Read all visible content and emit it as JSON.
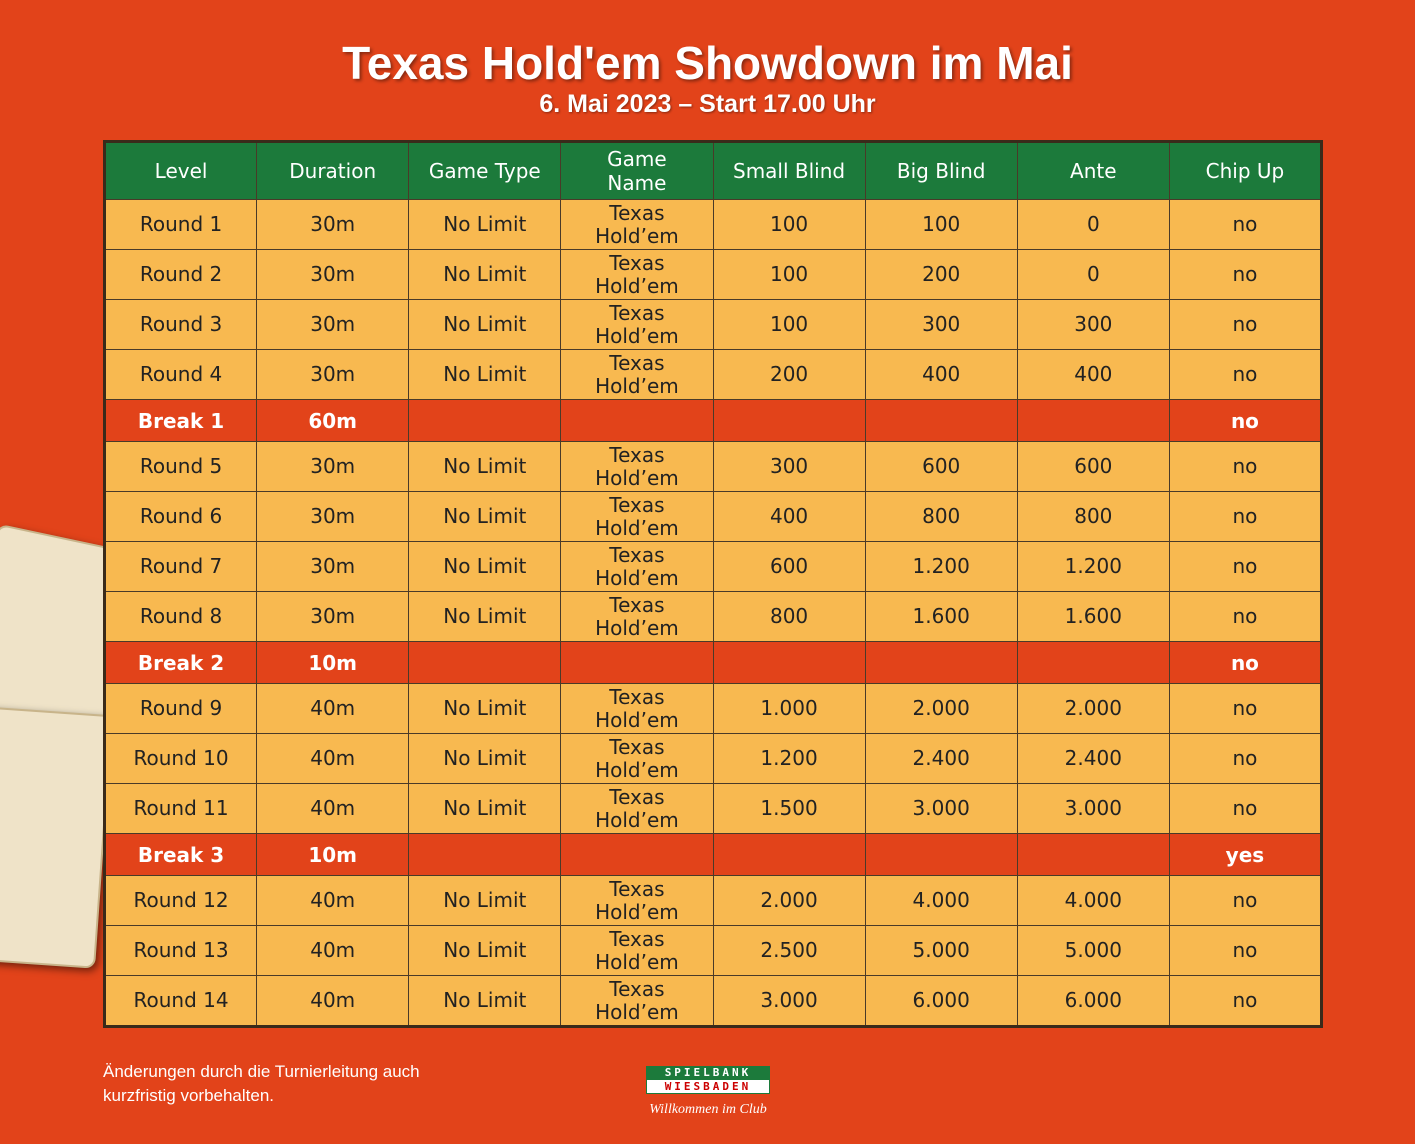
{
  "header": {
    "title": "Texas Hold'em Showdown im Mai",
    "subtitle": "6. Mai 2023 – Start 17.00 Uhr"
  },
  "table": {
    "columns": [
      "Level",
      "Duration",
      "Game Type",
      "Game Name",
      "Small Blind",
      "Big Blind",
      "Ante",
      "Chip Up"
    ],
    "rows": [
      [
        "Round 1",
        "30m",
        "No Limit",
        "Texas Hold’em",
        "100",
        "100",
        "0",
        "no"
      ],
      [
        "Round 2",
        "30m",
        "No Limit",
        "Texas Hold’em",
        "100",
        "200",
        "0",
        "no"
      ],
      [
        "Round 3",
        "30m",
        "No Limit",
        "Texas Hold’em",
        "100",
        "300",
        "300",
        "no"
      ],
      [
        "Round 4",
        "30m",
        "No Limit",
        "Texas Hold’em",
        "200",
        "400",
        "400",
        "no"
      ],
      {
        "level": "Break 1",
        "duration": "60m",
        "chip_up": "no"
      },
      [
        "Round 5",
        "30m",
        "No Limit",
        "Texas Hold’em",
        "300",
        "600",
        "600",
        "no"
      ],
      [
        "Round 6",
        "30m",
        "No Limit",
        "Texas Hold’em",
        "400",
        "800",
        "800",
        "no"
      ],
      [
        "Round 7",
        "30m",
        "No Limit",
        "Texas Hold’em",
        "600",
        "1.200",
        "1.200",
        "no"
      ],
      [
        "Round 8",
        "30m",
        "No Limit",
        "Texas Hold’em",
        "800",
        "1.600",
        "1.600",
        "no"
      ],
      {
        "level": "Break 2",
        "duration": "10m",
        "chip_up": "no"
      },
      [
        "Round 9",
        "40m",
        "No Limit",
        "Texas Hold’em",
        "1.000",
        "2.000",
        "2.000",
        "no"
      ],
      [
        "Round 10",
        "40m",
        "No Limit",
        "Texas Hold’em",
        "1.200",
        "2.400",
        "2.400",
        "no"
      ],
      [
        "Round 11",
        "40m",
        "No Limit",
        "Texas Hold’em",
        "1.500",
        "3.000",
        "3.000",
        "no"
      ],
      {
        "level": "Break 3",
        "duration": "10m",
        "chip_up": "yes"
      },
      [
        "Round 12",
        "40m",
        "No Limit",
        "Texas Hold’em",
        "2.000",
        "4.000",
        "4.000",
        "no"
      ],
      [
        "Round 13",
        "40m",
        "No Limit",
        "Texas Hold’em",
        "2.500",
        "5.000",
        "5.000",
        "no"
      ],
      [
        "Round 14",
        "40m",
        "No Limit",
        "Texas Hold’em",
        "3.000",
        "6.000",
        "6.000",
        "no"
      ]
    ]
  },
  "footer": {
    "note": "Änderungen durch die Turnierleitung auch kurzfristig vorbehalten.",
    "logo": {
      "line1": "SPIELBANK",
      "line2": "WIESBADEN",
      "slogan": "Willkommen im Club"
    }
  }
}
